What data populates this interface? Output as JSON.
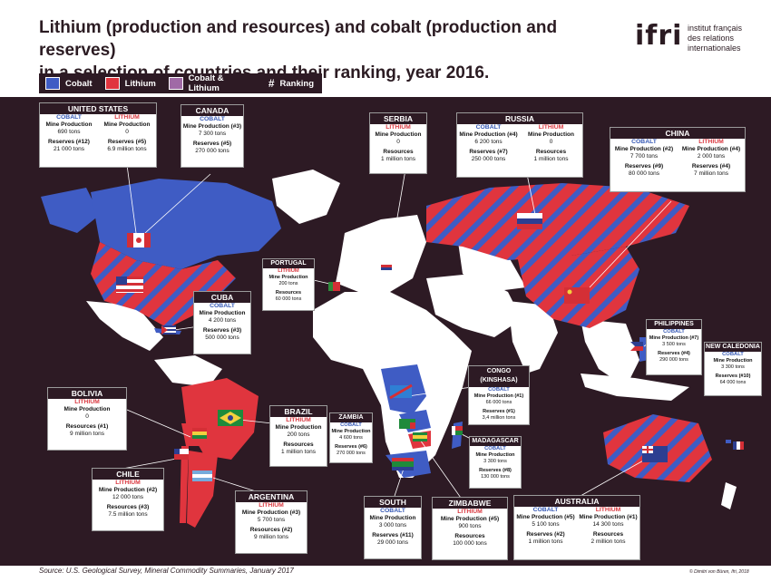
{
  "title_line1": "Lithium (production and resources) and cobalt (production and reserves)",
  "title_line2": "in a selection of countries and their ranking, year 2016.",
  "logo": {
    "mark": "ifri",
    "sub1": "institut français",
    "sub2": "des relations",
    "sub3": "internationales"
  },
  "legend": {
    "cobalt": "Cobalt",
    "lithium": "Lithium",
    "both": "Cobalt & Lithium",
    "hash": "#",
    "ranking": "Ranking"
  },
  "colors": {
    "cobalt": "#3f5cc4",
    "lithium": "#e0353e",
    "both": "#a06aa6",
    "background": "#2d1a24",
    "land": "#ffffff"
  },
  "labels": {
    "cobalt": "COBALT",
    "lithium": "LITHIUM",
    "mine_production": "Mine Production",
    "reserves": "Reserves",
    "resources": "Resources"
  },
  "countries": {
    "usa": {
      "name": "UNITED STATES",
      "co_prod_label": "Mine Production",
      "co_prod": "690 tons",
      "co_res_label": "Reserves (#12)",
      "co_res": "21 000 tons",
      "li_prod_label": "Mine Production",
      "li_prod": "0",
      "li_res_label": "Reserves (#5)",
      "li_res": "6.9 million tons"
    },
    "canada": {
      "name": "CANADA",
      "co_prod_label": "Mine Production (#3)",
      "co_prod": "7 300 tons",
      "co_res_label": "Reserves (#5)",
      "co_res": "270 000 tons"
    },
    "serbia": {
      "name": "SERBIA",
      "li_prod_label": "Mine Production",
      "li_prod": "0",
      "li_res_label": "Resources",
      "li_res": "1 million tons"
    },
    "russia": {
      "name": "RUSSIA",
      "co_prod_label": "Mine Production (#4)",
      "co_prod": "6 200 tons",
      "co_res_label": "Reserves (#7)",
      "co_res": "250 000 tons",
      "li_prod_label": "Mine Production",
      "li_prod": "0",
      "li_res_label": "Resources",
      "li_res": "1 million tons"
    },
    "china": {
      "name": "CHINA",
      "co_prod_label": "Mine Production (#2)",
      "co_prod": "7 700 tons",
      "co_res_label": "Reserves (#9)",
      "co_res": "80 000 tons",
      "li_prod_label": "Mine Production (#4)",
      "li_prod": "2 000 tons",
      "li_res_label": "Reserves (#4)",
      "li_res": "7 million tons"
    },
    "portugal": {
      "name": "PORTUGAL",
      "li_prod_label": "Mine Production",
      "li_prod": "200 tons",
      "li_res_label": "Resources",
      "li_res": "60 000 tons"
    },
    "cuba": {
      "name": "CUBA",
      "co_prod_label": "Mine Production",
      "co_prod": "4 200 tons",
      "co_res_label": "Reserves (#3)",
      "co_res": "500 000 tons"
    },
    "philippines": {
      "name": "PHILIPPINES",
      "co_prod_label": "Mine Production (#7)",
      "co_prod": "3 500 tons",
      "co_res_label": "Reserves (#4)",
      "co_res": "290 000 tons"
    },
    "new_caledonia": {
      "name": "NEW CALEDONIA",
      "co_prod_label": "Mine Production",
      "co_prod": "3 300 tons",
      "co_res_label": "Reserves (#10)",
      "co_res": "64 000 tons"
    },
    "congo": {
      "name_line1": "CONGO",
      "name_line2": "(KINSHASA)",
      "co_prod_label": "Mine Production (#1)",
      "co_prod": "66 000 tons",
      "co_res_label": "Reserves (#1)",
      "co_res": "3,4 million tons"
    },
    "bolivia": {
      "name": "BOLIVIA",
      "li_prod_label": "Mine Production",
      "li_prod": "0",
      "li_res_label": "Resources (#1)",
      "li_res": "9 million tons"
    },
    "brazil": {
      "name": "BRAZIL",
      "li_prod_label": "Mine Production",
      "li_prod": "200 tons",
      "li_res_label": "Resources",
      "li_res": "1 million tons"
    },
    "zambia": {
      "name": "ZAMBIA",
      "co_prod_label": "Mine Production",
      "co_prod": "4 600 tons",
      "co_res_label": "Reserves (#6)",
      "co_res": "270 000 tons"
    },
    "madagascar": {
      "name": "MADAGASCAR",
      "co_prod_label": "Mine Production",
      "co_prod": "3 300 tons",
      "co_res_label": "Reserves (#8)",
      "co_res": "130 000 tons"
    },
    "chile": {
      "name": "CHILE",
      "li_prod_label": "Mine Production (#2)",
      "li_prod": "12 000 tons",
      "li_res_label": "Resources (#3)",
      "li_res": "7.5 million tons"
    },
    "argentina": {
      "name": "ARGENTINA",
      "li_prod_label": "Mine Production (#3)",
      "li_prod": "5 700 tons",
      "li_res_label": "Resources (#2)",
      "li_res": "9 million tons"
    },
    "south_africa": {
      "name": "SOUTH AFRICA",
      "co_prod_label": "Mine Production",
      "co_prod": "3 000 tons",
      "co_res_label": "Reserves (#11)",
      "co_res": "29 000 tons"
    },
    "zimbabwe": {
      "name": "ZIMBABWE",
      "li_prod_label": "Mine Production (#5)",
      "li_prod": "900 tons",
      "li_res_label": "Resources",
      "li_res": "100 000 tons"
    },
    "australia": {
      "name": "AUSTRALIA",
      "co_prod_label": "Mine Production (#5)",
      "co_prod": "5 100 tons",
      "co_res_label": "Reserves (#2)",
      "co_res": "1 million tons",
      "li_prod_label": "Mine Production (#1)",
      "li_prod": "14 300 tons",
      "li_res_label": "Resources",
      "li_res": "2 million tons"
    }
  },
  "source": "Source: U.S. Geological Survey, Mineral Commodity Summaries, January 2017",
  "credit": "© Dimitri von Büren, Ifri, 2018"
}
